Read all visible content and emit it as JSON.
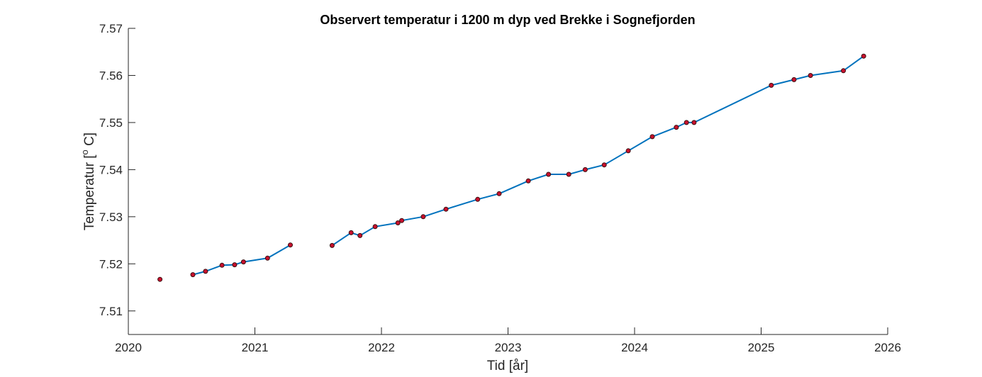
{
  "chart_data": {
    "type": "line",
    "title": "Observert temperatur i 1200 m dyp ved Brekke i Sognefjorden",
    "xlabel": "Tid [år]",
    "ylabel": "Temperatur [",
    "ylabel_superscript": "o",
    "ylabel_suffix": " C]",
    "xlim": [
      2020,
      2026
    ],
    "ylim": [
      7.505,
      7.57
    ],
    "xticks": [
      2020,
      2021,
      2022,
      2023,
      2024,
      2025,
      2026
    ],
    "yticks": [
      7.51,
      7.52,
      7.53,
      7.54,
      7.55,
      7.56,
      7.57
    ],
    "grid": false,
    "line_color": "#0072BD",
    "marker_face_color": "#C8102E",
    "marker_edge_color": "#3a1010",
    "series": [
      {
        "segments": [
          [
            [
              2020.25,
              7.5167
            ]
          ],
          [
            [
              2020.51,
              7.5177
            ],
            [
              2020.61,
              7.5184
            ],
            [
              2020.74,
              7.5197
            ],
            [
              2020.84,
              7.5198
            ],
            [
              2020.91,
              7.5204
            ],
            [
              2021.1,
              7.5212
            ],
            [
              2021.28,
              7.524
            ]
          ],
          [
            [
              2021.61,
              7.5239
            ],
            [
              2021.76,
              7.5266
            ],
            [
              2021.83,
              7.526
            ],
            [
              2021.95,
              7.5279
            ],
            [
              2022.13,
              7.5287
            ],
            [
              2022.16,
              7.5292
            ],
            [
              2022.33,
              7.53
            ],
            [
              2022.51,
              7.5316
            ],
            [
              2022.76,
              7.5337
            ],
            [
              2022.93,
              7.5349
            ],
            [
              2023.16,
              7.5376
            ],
            [
              2023.32,
              7.539
            ],
            [
              2023.48,
              7.539
            ],
            [
              2023.61,
              7.54
            ],
            [
              2023.76,
              7.541
            ],
            [
              2023.95,
              7.544
            ],
            [
              2024.14,
              7.547
            ],
            [
              2024.33,
              7.549
            ],
            [
              2024.41,
              7.55
            ],
            [
              2024.47,
              7.55
            ],
            [
              2025.08,
              7.5579
            ],
            [
              2025.26,
              7.5591
            ],
            [
              2025.39,
              7.56
            ],
            [
              2025.65,
              7.561
            ],
            [
              2025.81,
              7.5641
            ]
          ]
        ]
      }
    ]
  }
}
